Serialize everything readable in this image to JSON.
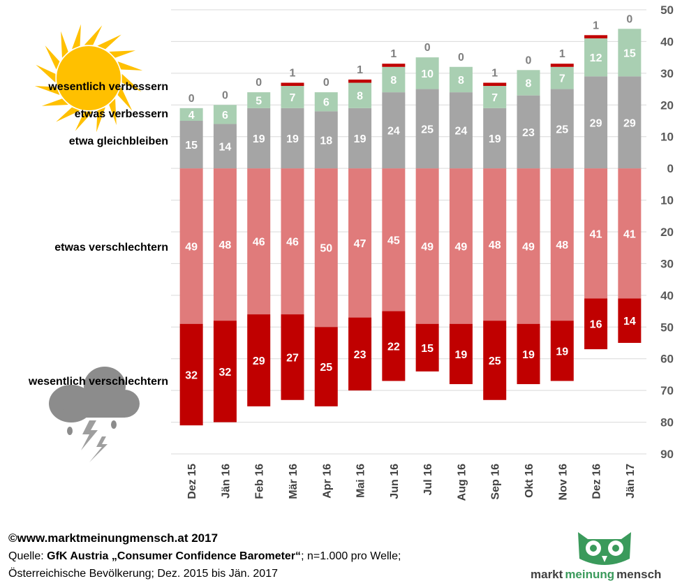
{
  "chart_data": {
    "type": "diverging-stacked-bar",
    "categories": [
      "Dez 15",
      "Jän 16",
      "Feb 16",
      "Mär 16",
      "Apr 16",
      "Mai 16",
      "Jun 16",
      "Jul 16",
      "Aug 16",
      "Sep 16",
      "Okt 16",
      "Nov 16",
      "Dez 16",
      "Jän 17"
    ],
    "series": [
      {
        "name": "wesentlich verbessern",
        "color": "#c00000",
        "values": [
          0,
          0,
          0,
          1,
          0,
          1,
          1,
          0,
          0,
          1,
          0,
          1,
          1,
          0
        ]
      },
      {
        "name": "etwas verbessern",
        "color": "#a9cfb2",
        "values": [
          4,
          6,
          5,
          7,
          6,
          8,
          8,
          10,
          8,
          7,
          8,
          7,
          12,
          15
        ]
      },
      {
        "name": "etwa gleichbleiben",
        "color": "#a5a5a5",
        "values": [
          15,
          14,
          19,
          19,
          18,
          19,
          24,
          25,
          24,
          19,
          23,
          25,
          29,
          29
        ]
      },
      {
        "name": "etwas verschlechtern",
        "color": "#e07b7b",
        "values": [
          -49,
          -48,
          -46,
          -46,
          -50,
          -47,
          -45,
          -49,
          -49,
          -48,
          -49,
          -48,
          -41,
          -41
        ],
        "value_labels": [
          "49",
          "48",
          "46",
          "46",
          "50",
          "47",
          "45",
          "49",
          "49",
          "48",
          "49",
          "48",
          "41",
          "41"
        ]
      },
      {
        "name": "wesentlich verschlechtern",
        "color": "#c00000",
        "values": [
          -32,
          -32,
          -29,
          -27,
          -25,
          -23,
          -22,
          -15,
          -19,
          -25,
          -19,
          -19,
          -16,
          -14
        ],
        "value_labels": [
          "32",
          "32",
          "29",
          "27",
          "25",
          "23",
          "22",
          "15",
          "19",
          "25",
          "19",
          "19",
          "16",
          "14"
        ]
      }
    ],
    "ylim": [
      -90,
      50
    ],
    "yticks": [
      50,
      40,
      30,
      20,
      10,
      0,
      {
        "value": -10,
        "label": "10"
      },
      {
        "value": -20,
        "label": "20"
      },
      {
        "value": -30,
        "label": "30"
      },
      {
        "value": -40,
        "label": "40"
      },
      {
        "value": -50,
        "label": "50"
      },
      {
        "value": -60,
        "label": "60"
      },
      {
        "value": -70,
        "label": "70"
      },
      {
        "value": -80,
        "label": "80"
      },
      {
        "value": -90,
        "label": "90"
      }
    ],
    "grid": true,
    "y_axis_side": "right"
  },
  "footer": {
    "copyright": "©www.marktmeinungmensch.at 2017",
    "source_prefix": "Quelle: ",
    "source_bold": "GfK Austria „Consumer Confidence Barometer“",
    "source_rest": "; n=1.000 pro Welle;",
    "source_line2": "Österreichische Bevölkerung; Dez. 2015 bis Jän. 2017"
  },
  "logo": {
    "part1": "markt",
    "part2": "meinung",
    "part3": "mensch"
  }
}
